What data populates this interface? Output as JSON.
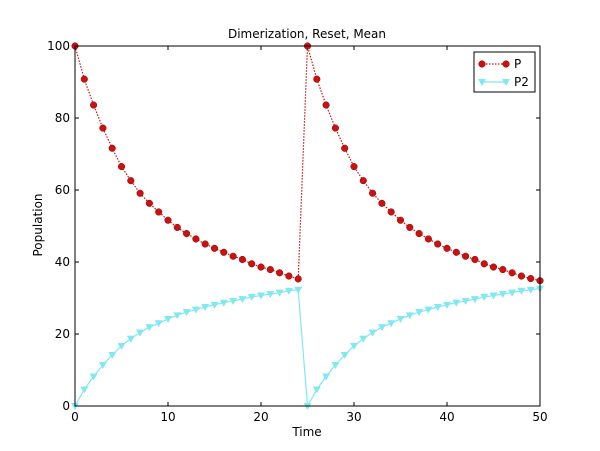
{
  "chart_data": {
    "type": "line",
    "title": "Dimerization, Reset, Mean",
    "xlabel": "Time",
    "ylabel": "Population",
    "xlim": [
      0,
      50
    ],
    "ylim": [
      0,
      100
    ],
    "xticks": [
      0,
      10,
      20,
      30,
      40,
      50
    ],
    "yticks": [
      0,
      20,
      40,
      60,
      80,
      100
    ],
    "xtick_labels": [
      "0",
      "10",
      "20",
      "30",
      "40",
      "50"
    ],
    "ytick_labels": [
      "0",
      "20",
      "40",
      "60",
      "80",
      "100"
    ],
    "grid": false,
    "legend": {
      "position": "top-right"
    },
    "series": [
      {
        "name": "P",
        "color": "#cc1111",
        "marker": "circle",
        "line_style": "dotted",
        "x": [
          0,
          1,
          2,
          3,
          4,
          5,
          6,
          7,
          8,
          9,
          10,
          11,
          12,
          13,
          14,
          15,
          16,
          17,
          18,
          19,
          20,
          21,
          22,
          23,
          24,
          25,
          26,
          27,
          28,
          29,
          30,
          31,
          32,
          33,
          34,
          35,
          36,
          37,
          38,
          39,
          40,
          41,
          42,
          43,
          44,
          45,
          46,
          47,
          48,
          49,
          50
        ],
        "y": [
          100,
          90.8,
          83.6,
          77.2,
          71.6,
          66.5,
          62.6,
          59.1,
          56.3,
          53.9,
          51.6,
          49.6,
          47.9,
          46.4,
          45.0,
          43.8,
          42.7,
          41.6,
          40.7,
          39.5,
          38.6,
          37.9,
          37.0,
          36.1,
          35.3,
          100,
          90.8,
          83.6,
          77.2,
          71.6,
          66.5,
          62.6,
          59.1,
          56.3,
          53.9,
          51.6,
          49.6,
          47.9,
          46.4,
          45.0,
          43.8,
          42.7,
          41.6,
          40.7,
          39.5,
          38.6,
          37.9,
          37.0,
          36.1,
          35.4,
          34.8
        ]
      },
      {
        "name": "P2",
        "color": "#7fe8f0",
        "marker": "triangle-down",
        "line_style": "solid",
        "x": [
          0,
          1,
          2,
          3,
          4,
          5,
          6,
          7,
          8,
          9,
          10,
          11,
          12,
          13,
          14,
          15,
          16,
          17,
          18,
          19,
          20,
          21,
          22,
          23,
          24,
          25,
          26,
          27,
          28,
          29,
          30,
          31,
          32,
          33,
          34,
          35,
          36,
          37,
          38,
          39,
          40,
          41,
          42,
          43,
          44,
          45,
          46,
          47,
          48,
          49,
          50
        ],
        "y": [
          0,
          4.6,
          8.2,
          11.4,
          14.2,
          16.7,
          18.7,
          20.4,
          21.9,
          23.0,
          24.2,
          25.2,
          26.1,
          26.8,
          27.5,
          28.1,
          28.7,
          29.2,
          29.7,
          30.3,
          30.7,
          31.1,
          31.5,
          32.0,
          32.3,
          0,
          4.6,
          8.2,
          11.4,
          14.2,
          16.7,
          18.7,
          20.4,
          21.9,
          23.0,
          24.2,
          25.2,
          26.1,
          26.8,
          27.5,
          28.1,
          28.7,
          29.2,
          29.7,
          30.3,
          30.7,
          31.1,
          31.5,
          32.0,
          32.3,
          32.6
        ]
      }
    ]
  }
}
